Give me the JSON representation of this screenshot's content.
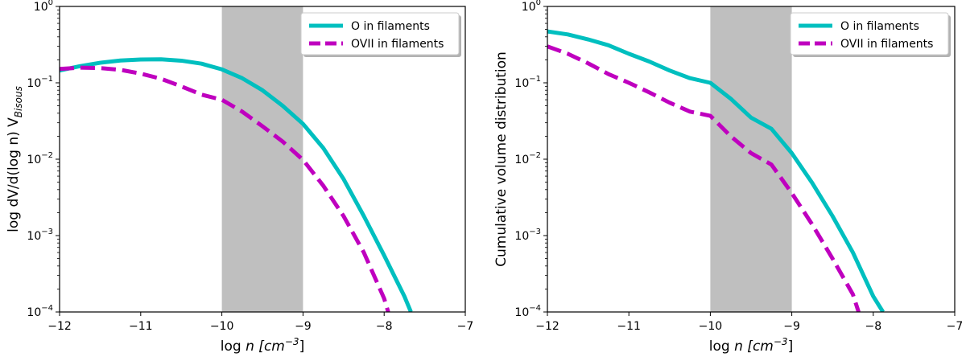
{
  "chart_data": [
    {
      "type": "line",
      "title": "",
      "xlabel": "log n [cm^-3]",
      "xlabel_parts": {
        "prefix": "log ",
        "var": "n",
        "unit": " [cm",
        "sup": "−3",
        "close": "]"
      },
      "ylabel": "log dV/d(log n) V_Bisous",
      "ylabel_parts": {
        "text": "log dV/d(log n) V",
        "sub": "Bisous"
      },
      "yscale": "log",
      "xlim": [
        -12,
        -7
      ],
      "ylim_exp": [
        -4,
        0
      ],
      "xticks": [
        -12,
        -11,
        -10,
        -9,
        -8,
        -7
      ],
      "xtick_labels": [
        "−12",
        "−11",
        "−10",
        "−9",
        "−8",
        "−7"
      ],
      "ytick_exps": [
        -4,
        -3,
        -2,
        -1,
        0
      ],
      "ytick_base": "10",
      "ytick_exp_labels": [
        "−4",
        "−3",
        "−2",
        "−1",
        "0"
      ],
      "shaded_region_x": [
        -10,
        -9
      ],
      "legend_position": "top-right",
      "series": [
        {
          "name": "O in filaments",
          "color": "#00bfbf",
          "style": "solid",
          "x": [
            -12,
            -11.75,
            -11.5,
            -11.25,
            -11,
            -10.75,
            -10.5,
            -10.25,
            -10,
            -9.75,
            -9.5,
            -9.25,
            -9,
            -8.75,
            -8.5,
            -8.25,
            -8,
            -7.75,
            -7.67
          ],
          "y": [
            0.145,
            0.165,
            0.183,
            0.196,
            0.202,
            0.203,
            0.195,
            0.178,
            0.15,
            0.115,
            0.08,
            0.05,
            0.029,
            0.014,
            0.0055,
            0.0018,
            0.00055,
            0.00016,
            0.0001
          ]
        },
        {
          "name": "OVII in filaments",
          "color": "#bf00bf",
          "style": "dashed",
          "x": [
            -12,
            -11.75,
            -11.5,
            -11.25,
            -11,
            -10.75,
            -10.5,
            -10.25,
            -10,
            -9.75,
            -9.5,
            -9.25,
            -9,
            -8.75,
            -8.5,
            -8.25,
            -8,
            -7.95
          ],
          "y": [
            0.152,
            0.158,
            0.156,
            0.148,
            0.132,
            0.113,
            0.09,
            0.07,
            0.06,
            0.042,
            0.027,
            0.017,
            0.0098,
            0.0045,
            0.0018,
            0.0006,
            0.00015,
            0.0001
          ]
        }
      ]
    },
    {
      "type": "line",
      "title": "",
      "xlabel": "log n [cm^-3]",
      "xlabel_parts": {
        "prefix": "log ",
        "var": "n",
        "unit": " [cm",
        "sup": "−3",
        "close": "]"
      },
      "ylabel": "Cumulative volume distribution",
      "ylabel_parts": {
        "text": "Cumulative volume distribution",
        "sub": ""
      },
      "yscale": "log",
      "xlim": [
        -12,
        -7
      ],
      "ylim_exp": [
        -4,
        0
      ],
      "xticks": [
        -12,
        -11,
        -10,
        -9,
        -8,
        -7
      ],
      "xtick_labels": [
        "−12",
        "−11",
        "−10",
        "−9",
        "−8",
        "−7"
      ],
      "ytick_exps": [
        -4,
        -3,
        -2,
        -1,
        0
      ],
      "ytick_base": "10",
      "ytick_exp_labels": [
        "−4",
        "−3",
        "−2",
        "−1",
        "0"
      ],
      "shaded_region_x": [
        -10,
        -9
      ],
      "legend_position": "top-right",
      "series": [
        {
          "name": "O in filaments",
          "color": "#00bfbf",
          "style": "solid",
          "x": [
            -12,
            -11.75,
            -11.5,
            -11.25,
            -11,
            -10.75,
            -10.5,
            -10.25,
            -10,
            -9.75,
            -9.5,
            -9.25,
            -9,
            -8.75,
            -8.5,
            -8.25,
            -8,
            -7.88
          ],
          "y": [
            0.47,
            0.43,
            0.37,
            0.31,
            0.24,
            0.19,
            0.145,
            0.115,
            0.1,
            0.062,
            0.035,
            0.025,
            0.012,
            0.0049,
            0.0018,
            0.0006,
            0.00016,
            0.0001
          ]
        },
        {
          "name": "OVII in filaments",
          "color": "#bf00bf",
          "style": "dashed",
          "x": [
            -12,
            -11.75,
            -11.5,
            -11.25,
            -11,
            -10.75,
            -10.5,
            -10.25,
            -10,
            -9.75,
            -9.5,
            -9.25,
            -9,
            -8.75,
            -8.5,
            -8.25,
            -8.18
          ],
          "y": [
            0.3,
            0.24,
            0.18,
            0.13,
            0.1,
            0.075,
            0.055,
            0.042,
            0.037,
            0.02,
            0.012,
            0.0085,
            0.0036,
            0.0014,
            0.0005,
            0.00017,
            0.0001
          ]
        }
      ]
    }
  ]
}
